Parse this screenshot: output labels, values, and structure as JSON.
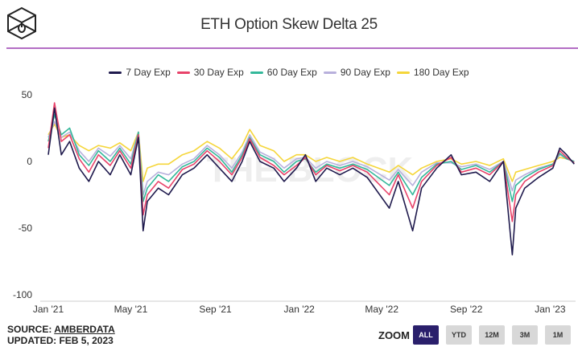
{
  "header": {
    "title": "ETH Option Skew Delta 25"
  },
  "footer": {
    "source_prefix": "SOURCE: ",
    "source_name": "AMBERDATA",
    "updated": "UPDATED: FEB 5, 2023"
  },
  "zoom": {
    "label": "ZOOM",
    "buttons": [
      "ALL",
      "YTD",
      "12M",
      "3M",
      "1M"
    ],
    "active": "ALL"
  },
  "chart_data": {
    "type": "line",
    "title": "ETH Option Skew Delta 25",
    "xlabel": "",
    "ylabel": "",
    "ylim": [
      -100,
      50
    ],
    "yticks": [
      50,
      0,
      -50,
      -100
    ],
    "xticks": [
      {
        "date": "2021-01-01",
        "label": "Jan '21"
      },
      {
        "date": "2021-05-01",
        "label": "May '21"
      },
      {
        "date": "2021-09-01",
        "label": "Sep '21"
      },
      {
        "date": "2022-01-01",
        "label": "Jan '22"
      },
      {
        "date": "2022-05-01",
        "label": "May '22"
      },
      {
        "date": "2022-09-01",
        "label": "Sep '22"
      },
      {
        "date": "2023-01-01",
        "label": "Jan '23"
      }
    ],
    "xlim": [
      "2021-01-01",
      "2023-02-07"
    ],
    "grid": false,
    "legend": "top",
    "watermark": "THE BLOCK",
    "x": [
      "2021-01-01",
      "2021-01-10",
      "2021-01-20",
      "2021-02-01",
      "2021-02-15",
      "2021-03-01",
      "2021-03-15",
      "2021-04-01",
      "2021-04-15",
      "2021-05-01",
      "2021-05-12",
      "2021-05-19",
      "2021-05-25",
      "2021-06-10",
      "2021-06-25",
      "2021-07-15",
      "2021-08-01",
      "2021-08-20",
      "2021-09-07",
      "2021-09-25",
      "2021-10-10",
      "2021-10-21",
      "2021-11-05",
      "2021-11-25",
      "2021-12-10",
      "2021-12-28",
      "2022-01-10",
      "2022-01-25",
      "2022-02-10",
      "2022-03-01",
      "2022-03-20",
      "2022-04-10",
      "2022-05-12",
      "2022-05-25",
      "2022-06-15",
      "2022-06-28",
      "2022-07-20",
      "2022-08-10",
      "2022-08-25",
      "2022-09-15",
      "2022-10-05",
      "2022-10-25",
      "2022-11-07",
      "2022-11-12",
      "2022-11-25",
      "2022-12-15",
      "2023-01-05",
      "2023-01-15",
      "2023-01-25",
      "2023-02-05"
    ],
    "series": [
      {
        "name": "7 Day Exp",
        "color": "#1f1a4d",
        "values": [
          5,
          40,
          5,
          15,
          -5,
          -15,
          0,
          -10,
          5,
          -10,
          18,
          -52,
          -30,
          -20,
          -25,
          -10,
          -5,
          5,
          -5,
          -15,
          0,
          15,
          0,
          -5,
          -15,
          -5,
          5,
          -15,
          -5,
          -10,
          -5,
          -12,
          -35,
          -15,
          -52,
          -20,
          -5,
          5,
          -10,
          -8,
          -15,
          0,
          -70,
          -35,
          -20,
          -12,
          -5,
          10,
          5,
          -2
        ]
      },
      {
        "name": "30 Day Exp",
        "color": "#e8436a",
        "values": [
          10,
          44,
          15,
          20,
          2,
          -8,
          5,
          -3,
          8,
          -5,
          20,
          -40,
          -25,
          -15,
          -20,
          -6,
          -2,
          8,
          0,
          -10,
          3,
          17,
          3,
          -3,
          -10,
          -3,
          3,
          -10,
          -3,
          -7,
          -3,
          -8,
          -25,
          -10,
          -35,
          -15,
          -3,
          3,
          -8,
          -5,
          -10,
          0,
          -45,
          -25,
          -15,
          -8,
          -3,
          8,
          3,
          -1
        ]
      },
      {
        "name": "60 Day Exp",
        "color": "#34b89a",
        "values": [
          15,
          35,
          20,
          25,
          5,
          -3,
          8,
          0,
          10,
          -2,
          22,
          -30,
          -20,
          -10,
          -15,
          -4,
          0,
          10,
          3,
          -8,
          5,
          18,
          5,
          0,
          -8,
          0,
          2,
          -8,
          -2,
          -5,
          -2,
          -6,
          -18,
          -8,
          -25,
          -12,
          -2,
          0,
          -6,
          -3,
          -8,
          0,
          -30,
          -18,
          -12,
          -6,
          -2,
          6,
          2,
          0
        ]
      },
      {
        "name": "90 Day Exp",
        "color": "#b8b0dc",
        "values": [
          18,
          30,
          18,
          22,
          8,
          0,
          10,
          4,
          12,
          2,
          22,
          -25,
          -15,
          -8,
          -10,
          -2,
          2,
          12,
          5,
          -5,
          7,
          20,
          7,
          2,
          -5,
          2,
          3,
          -5,
          0,
          -3,
          0,
          -4,
          -14,
          -6,
          -18,
          -8,
          -1,
          -1,
          -4,
          -2,
          -6,
          0,
          -22,
          -14,
          -10,
          -5,
          -2,
          5,
          2,
          0
        ]
      },
      {
        "name": "180 Day Exp",
        "color": "#f5d63a",
        "values": [
          20,
          28,
          18,
          20,
          12,
          8,
          12,
          10,
          14,
          8,
          22,
          -15,
          -5,
          -2,
          -2,
          5,
          8,
          15,
          10,
          2,
          12,
          24,
          12,
          8,
          0,
          5,
          5,
          0,
          3,
          0,
          3,
          -2,
          -8,
          -3,
          -10,
          -5,
          0,
          2,
          -2,
          0,
          -3,
          2,
          -15,
          -8,
          -6,
          -3,
          0,
          3,
          2,
          0
        ]
      }
    ]
  }
}
